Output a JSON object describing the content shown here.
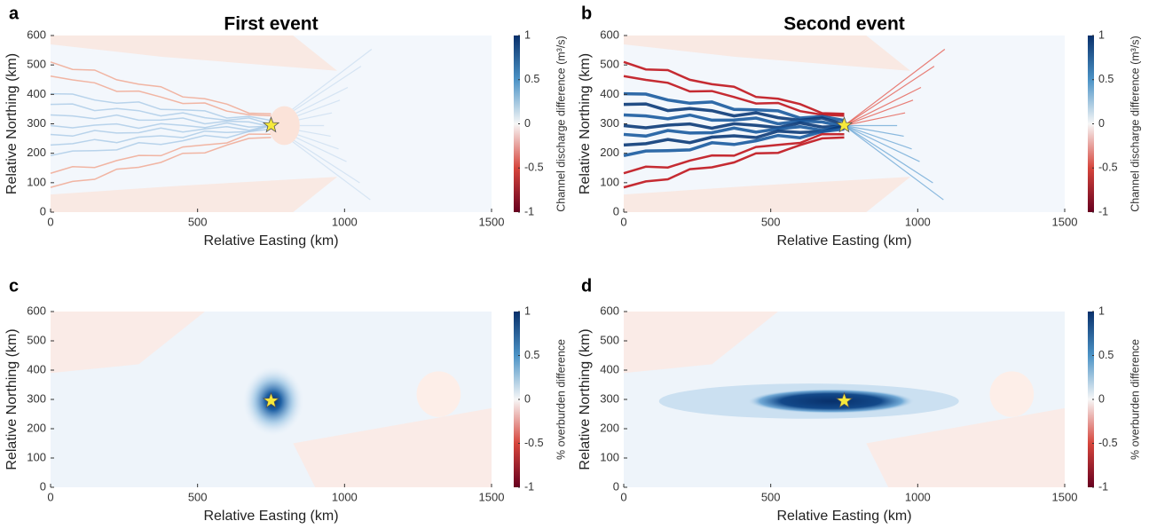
{
  "chart_data": [
    {
      "type": "heatmap",
      "panel": "a",
      "title": "First event",
      "xlabel": "Relative Easting (km)",
      "ylabel": "Relative Northing (km)",
      "xlim": [
        0,
        1500
      ],
      "xticks": [
        0,
        500,
        1000,
        1500
      ],
      "ylim": [
        0,
        600
      ],
      "yticks": [
        0,
        100,
        200,
        300,
        400,
        500,
        600
      ],
      "colorbar": {
        "label": "Channel discharge difference (m³/s)",
        "lim": [
          -1,
          1
        ],
        "ticks": [
          -1,
          -0.5,
          0,
          0.5,
          1
        ],
        "colors": [
          "#67001f",
          "#d6453c",
          "#f7f7f7",
          "#4b93c6",
          "#08306b"
        ]
      },
      "points": {
        "x": [
          750
        ],
        "y": [
          295
        ],
        "color": "#f6e93c"
      }
    },
    {
      "type": "heatmap",
      "panel": "b",
      "title": "Second event",
      "xlabel": "Relative Easting (km)",
      "ylabel": "Relative Northing (km)",
      "xlim": [
        0,
        1500
      ],
      "xticks": [
        0,
        500,
        1000,
        1500
      ],
      "ylim": [
        0,
        600
      ],
      "yticks": [
        0,
        100,
        200,
        300,
        400,
        500,
        600
      ],
      "colorbar": {
        "label": "Channel discharge difference (m³/s)",
        "lim": [
          -1,
          1
        ],
        "ticks": [
          -1,
          -0.5,
          0,
          0.5,
          1
        ],
        "colors": [
          "#67001f",
          "#d6453c",
          "#f7f7f7",
          "#4b93c6",
          "#08306b"
        ]
      },
      "points": {
        "x": [
          750
        ],
        "y": [
          295
        ],
        "color": "#f6e93c"
      }
    },
    {
      "type": "heatmap",
      "panel": "c",
      "xlabel": "Relative Easting (km)",
      "ylabel": "Relative Northing (km)",
      "xlim": [
        0,
        1500
      ],
      "xticks": [
        0,
        500,
        1000,
        1500
      ],
      "ylim": [
        0,
        600
      ],
      "yticks": [
        0,
        100,
        200,
        300,
        400,
        500,
        600
      ],
      "colorbar": {
        "label": "% overburden difference",
        "lim": [
          -1,
          1
        ],
        "ticks": [
          -1,
          -0.5,
          0,
          0.5,
          1
        ],
        "colors": [
          "#67001f",
          "#d6453c",
          "#f7f7f7",
          "#4b93c6",
          "#08306b"
        ]
      },
      "points": {
        "x": [
          750
        ],
        "y": [
          295
        ],
        "color": "#f6e93c"
      }
    },
    {
      "type": "heatmap",
      "panel": "d",
      "xlabel": "Relative Easting (km)",
      "ylabel": "Relative Northing (km)",
      "xlim": [
        0,
        1500
      ],
      "xticks": [
        0,
        500,
        1000,
        1500
      ],
      "ylim": [
        0,
        600
      ],
      "yticks": [
        0,
        100,
        200,
        300,
        400,
        500,
        600
      ],
      "colorbar": {
        "label": "% overburden difference",
        "lim": [
          -1,
          1
        ],
        "ticks": [
          -1,
          -0.5,
          0,
          0.5,
          1
        ],
        "colors": [
          "#67001f",
          "#d6453c",
          "#f7f7f7",
          "#4b93c6",
          "#08306b"
        ]
      },
      "points": {
        "x": [
          750
        ],
        "y": [
          295
        ],
        "color": "#f6e93c"
      }
    }
  ]
}
